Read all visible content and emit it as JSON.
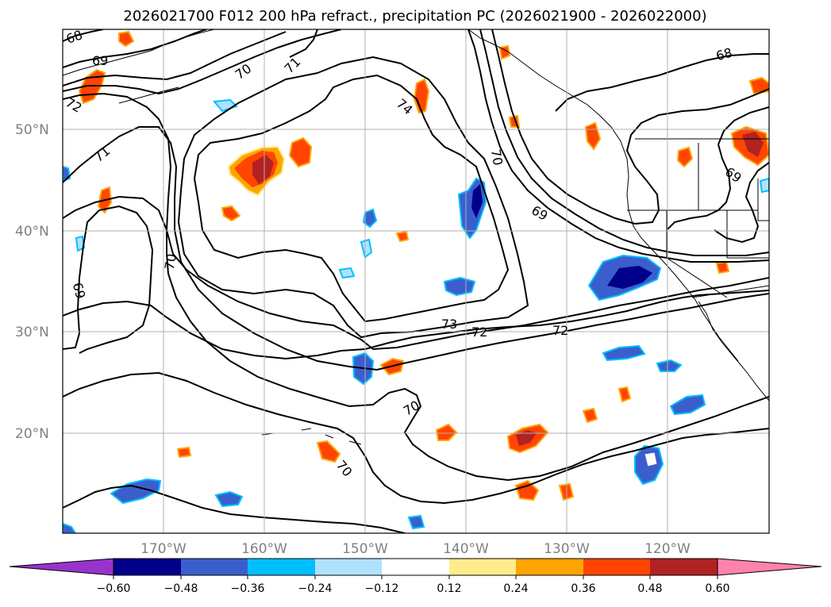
{
  "title": "2026021700 F012 200 hPa refract., precipitation PC (2026021900 - 2026022000)",
  "colors": {
    "neg_extend": "#9932cc",
    "neg_060": "#00008b",
    "neg_048": "#3a5fcd",
    "neg_036": "#00bfff",
    "neg_024": "#b0e2ff",
    "neutral": "#ffffff",
    "pos_012": "#ffec8b",
    "pos_024": "#ffa500",
    "pos_036": "#ff4500",
    "pos_048": "#b22222",
    "pos_extend": "#ff82ab",
    "contour": "#000000",
    "grid": "#b0b0b0",
    "axis_label": "#808080"
  },
  "lat_labels": [
    "50°N",
    "40°N",
    "30°N",
    "20°N"
  ],
  "lon_labels": [
    "170°W",
    "160°W",
    "150°W",
    "140°W",
    "130°W",
    "120°W"
  ],
  "colorbar": {
    "tick_labels": [
      "−0.60",
      "−0.48",
      "−0.36",
      "−0.24",
      "−0.12",
      "0.12",
      "0.24",
      "0.36",
      "0.48",
      "0.60"
    ],
    "levels": [
      -0.6,
      -0.48,
      -0.36,
      -0.24,
      -0.12,
      0.12,
      0.24,
      0.36,
      0.48,
      0.6
    ]
  },
  "contour_labels": [
    {
      "id": "c68-nw",
      "text": "68"
    },
    {
      "id": "c69-nw",
      "text": "69"
    },
    {
      "id": "c72-nw",
      "text": "72"
    },
    {
      "id": "c71-w",
      "text": "71"
    },
    {
      "id": "c70-n",
      "text": "70"
    },
    {
      "id": "c71-n",
      "text": "71"
    },
    {
      "id": "c74",
      "text": "74"
    },
    {
      "id": "c70-w",
      "text": "70"
    },
    {
      "id": "c69-sw",
      "text": "69"
    },
    {
      "id": "c70-ne",
      "text": "70"
    },
    {
      "id": "c69-ne",
      "text": "69"
    },
    {
      "id": "c68-ne",
      "text": "68"
    },
    {
      "id": "c69-far-ne",
      "text": "69"
    },
    {
      "id": "c73",
      "text": "73"
    },
    {
      "id": "c72-s1",
      "text": "72"
    },
    {
      "id": "c72-s2",
      "text": "72"
    },
    {
      "id": "c70-s",
      "text": "70"
    },
    {
      "id": "c70-sw",
      "text": "70"
    }
  ],
  "chart_data": {
    "type": "contour",
    "title": "2026021700 F012 200 hPa refract., precipitation PC (2026021900 - 2026022000)",
    "lon_range": [
      -180,
      -110
    ],
    "lat_range": [
      10,
      60
    ],
    "lon_ticks": [
      -170,
      -160,
      -150,
      -140,
      -130,
      -120
    ],
    "lat_ticks": [
      20,
      30,
      40,
      50
    ],
    "contour_levels": [
      68,
      69,
      70,
      71,
      72,
      73,
      74
    ],
    "fill_levels": [
      -0.6,
      -0.48,
      -0.36,
      -0.24,
      -0.12,
      0.12,
      0.24,
      0.36,
      0.48,
      0.6
    ],
    "grid": true,
    "colorbar": "bottom, horizontal, extended both ends"
  }
}
